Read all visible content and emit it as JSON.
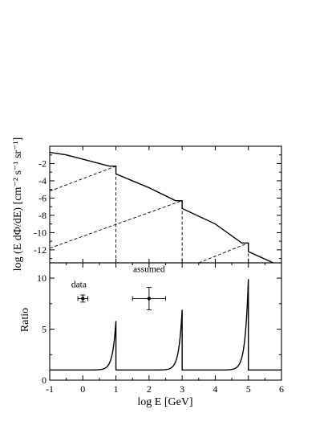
{
  "chart_data": [
    {
      "type": "line",
      "panel": "top",
      "xlabel": "",
      "ylabel": "log (E dΦ/dE)  [cm⁻² s⁻¹ sr⁻¹]",
      "xlim": [
        -1,
        6
      ],
      "ylim": [
        -13.5,
        0
      ],
      "x_ticks": [
        -1,
        0,
        1,
        2,
        3,
        4,
        5,
        6
      ],
      "y_ticks": [
        -2,
        -4,
        -6,
        -8,
        -10,
        -12
      ],
      "y_tick_labels": [
        "-2",
        "-4",
        "-6",
        "-8",
        "-10",
        "-12"
      ],
      "series": [
        {
          "style": "solid",
          "points": [
            [
              -1,
              -0.7
            ],
            [
              -0.5,
              -1.0
            ],
            [
              0,
              -1.5
            ],
            [
              0.5,
              -2.0
            ],
            [
              0.8,
              -2.3
            ],
            [
              1,
              -2.3
            ],
            [
              1,
              -3.2
            ],
            [
              2,
              -4.8
            ],
            [
              2.8,
              -6.3
            ],
            [
              3,
              -6.3
            ],
            [
              3,
              -7.2
            ],
            [
              4,
              -9.0
            ],
            [
              4.8,
              -11.2
            ],
            [
              5,
              -11.2
            ],
            [
              5,
              -12.2
            ],
            [
              5.75,
              -13.5
            ]
          ]
        },
        {
          "style": "dashed",
          "points": [
            [
              -1,
              -5.2
            ],
            [
              1,
              -2.3
            ]
          ]
        },
        {
          "style": "dashed",
          "points": [
            [
              -1,
              -11.8
            ],
            [
              3,
              -6.3
            ]
          ]
        },
        {
          "style": "dashed",
          "points": [
            [
              3.5,
              -13.5
            ],
            [
              5,
              -11.2
            ]
          ]
        },
        {
          "style": "dashed",
          "points": [
            [
              1,
              -2.3
            ],
            [
              1,
              -13.5
            ]
          ]
        },
        {
          "style": "dashed",
          "points": [
            [
              3,
              -6.3
            ],
            [
              3,
              -13.5
            ]
          ]
        },
        {
          "style": "dashed",
          "points": [
            [
              5,
              -11.2
            ],
            [
              5,
              -13.5
            ]
          ]
        }
      ]
    },
    {
      "type": "line",
      "panel": "bottom",
      "xlabel": "log E  [GeV]",
      "ylabel": "Ratio",
      "xlim": [
        -1,
        6
      ],
      "ylim": [
        0,
        11.5
      ],
      "x_ticks": [
        -1,
        0,
        1,
        2,
        3,
        4,
        5,
        6
      ],
      "x_tick_labels": [
        "-1",
        "0",
        "1",
        "2",
        "3",
        "4",
        "5",
        "6"
      ],
      "y_ticks": [
        0,
        5,
        10
      ],
      "y_tick_labels": [
        "0",
        "5",
        "10"
      ],
      "series": [
        {
          "style": "solid",
          "spikes": [
            {
              "start": 0.3,
              "end": 1,
              "base": 1.0,
              "peak": 5.8
            },
            {
              "start": 2.3,
              "end": 3,
              "base": 1.0,
              "peak": 6.9
            },
            {
              "start": 4.3,
              "end": 5,
              "base": 1.0,
              "peak": 9.9
            }
          ]
        }
      ],
      "annotations": [
        {
          "text": "data",
          "x": -0.35,
          "y": 9.1,
          "marker": {
            "x": 0,
            "y": 8.0,
            "xerr": 0.15,
            "yerr": 0.35
          }
        },
        {
          "text": "assumed",
          "x": 2.0,
          "y": 10.6,
          "marker": {
            "x": 2,
            "y": 8.0,
            "xerr": 0.5,
            "yerr": 1.1
          }
        }
      ]
    }
  ]
}
